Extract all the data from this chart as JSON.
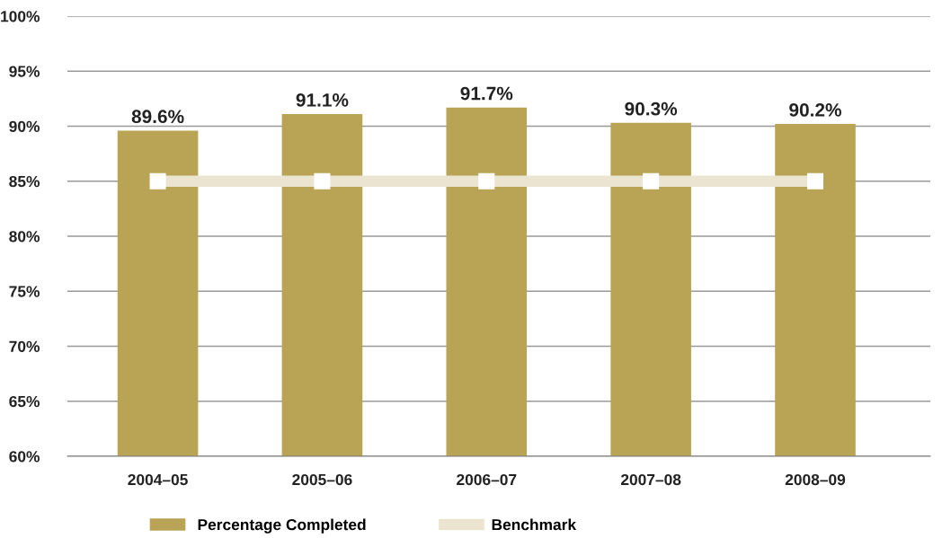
{
  "chart_data": {
    "type": "bar",
    "categories": [
      "2004–05",
      "2005–06",
      "2006–07",
      "2007–08",
      "2008–09"
    ],
    "series": [
      {
        "name": "Percentage Completed",
        "color": "#b9a355",
        "values": [
          89.6,
          91.1,
          91.7,
          90.3,
          90.2
        ],
        "value_labels": [
          "89.6%",
          "91.1%",
          "91.7%",
          "90.3%",
          "90.2%"
        ]
      },
      {
        "name": "Benchmark",
        "type": "line",
        "color": "#ebe4d0",
        "marker": "square",
        "values": [
          85,
          85,
          85,
          85,
          85
        ]
      }
    ],
    "ylim": [
      60,
      100
    ],
    "yticks": [
      {
        "value": 60,
        "label": "60%"
      },
      {
        "value": 65,
        "label": "65%"
      },
      {
        "value": 70,
        "label": "70%"
      },
      {
        "value": 75,
        "label": "75%"
      },
      {
        "value": 80,
        "label": "80%"
      },
      {
        "value": 85,
        "label": "85%"
      },
      {
        "value": 90,
        "label": "90%"
      },
      {
        "value": 95,
        "label": "95%"
      },
      {
        "value": 100,
        "label": "100%"
      }
    ],
    "grid": "y",
    "legend": "bottom"
  }
}
